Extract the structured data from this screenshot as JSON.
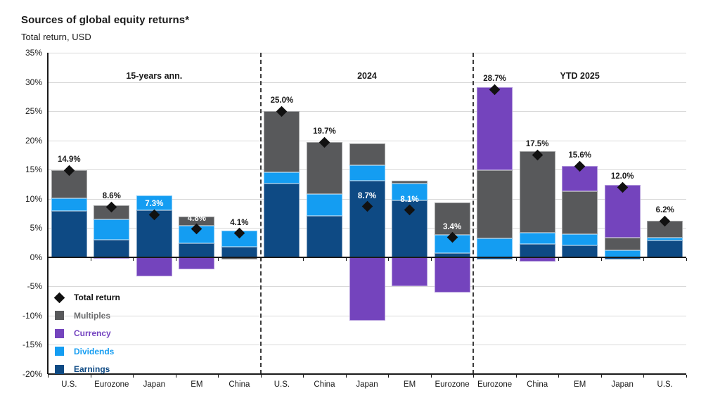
{
  "header": {
    "title": "Sources of global equity returns*",
    "subtitle": "Total return, USD"
  },
  "legend": [
    {
      "label": "Total return",
      "marker": "diamond",
      "color": "#111111",
      "text_color": "#111111"
    },
    {
      "label": "Multiples",
      "marker": "square",
      "color": "#58595b",
      "text_color": "#6d6e70"
    },
    {
      "label": "Currency",
      "marker": "square",
      "color": "#7444bd",
      "text_color": "#7443c0"
    },
    {
      "label": "Dividends",
      "marker": "square",
      "color": "#149df2",
      "text_color": "#149df2"
    },
    {
      "label": "Earnings",
      "marker": "square",
      "color": "#0e4a84",
      "text_color": "#0e4a84"
    }
  ],
  "chart_data": {
    "type": "bar",
    "stacked": true,
    "title": "Sources of global equity returns*",
    "subtitle": "Total return, USD",
    "ylabel": "",
    "ylim": [
      -20,
      35
    ],
    "ytick_step": 5,
    "ytick_suffix": "%",
    "grid": true,
    "legend_position": "bottom-left-inside",
    "series_order": [
      "Earnings",
      "Dividends",
      "Multiples",
      "Currency"
    ],
    "series_colors": {
      "Earnings": "#0e4a84",
      "Dividends": "#149df2",
      "Multiples": "#58595b",
      "Currency": "#7444bd"
    },
    "marker_series": "Total return",
    "groups": [
      {
        "label": "15-years ann.",
        "bars": [
          {
            "category": "U.S.",
            "total": 14.9,
            "total_label": "14.9%",
            "label_style": "dark",
            "components": {
              "Earnings": 7.9,
              "Dividends": 2.2,
              "Multiples": 4.8,
              "Currency": 0
            }
          },
          {
            "category": "Eurozone",
            "total": 8.6,
            "total_label": "8.6%",
            "label_style": "dark",
            "components": {
              "Earnings": 3.0,
              "Dividends": 3.5,
              "Multiples": 2.4,
              "Currency": -0.3
            }
          },
          {
            "category": "Japan",
            "total": 7.3,
            "total_label": "7.3%",
            "label_style": "white",
            "components": {
              "Earnings": 8.1,
              "Dividends": 2.5,
              "Multiples": 0,
              "Currency": -3.3
            }
          },
          {
            "category": "EM",
            "total": 4.8,
            "total_label": "4.8%",
            "label_style": "white",
            "components": {
              "Earnings": 2.4,
              "Dividends": 3.0,
              "Multiples": 1.5,
              "Currency": -2.1
            }
          },
          {
            "category": "China",
            "total": 4.1,
            "total_label": "4.1%",
            "label_style": "dark",
            "components": {
              "Earnings": 1.8,
              "Dividends": 2.7,
              "Multiples": -0.4,
              "Currency": 0
            }
          }
        ]
      },
      {
        "label": "2024",
        "bars": [
          {
            "category": "U.S.",
            "total": 25.0,
            "total_label": "25.0%",
            "label_style": "dark",
            "components": {
              "Earnings": 12.6,
              "Dividends": 1.9,
              "Multiples": 10.5,
              "Currency": 0
            }
          },
          {
            "category": "China",
            "total": 19.7,
            "total_label": "19.7%",
            "label_style": "dark",
            "components": {
              "Earnings": 7.1,
              "Dividends": 3.7,
              "Multiples": 8.9,
              "Currency": 0
            }
          },
          {
            "category": "Japan",
            "total": 8.7,
            "total_label": "8.7%",
            "label_style": "white",
            "components": {
              "Earnings": 13.1,
              "Dividends": 2.7,
              "Multiples": 3.7,
              "Currency": -10.8
            }
          },
          {
            "category": "EM",
            "total": 8.1,
            "total_label": "8.1%",
            "label_style": "white",
            "components": {
              "Earnings": 9.7,
              "Dividends": 2.9,
              "Multiples": 0.5,
              "Currency": -5.0
            }
          },
          {
            "category": "Eurozone",
            "total": 3.4,
            "total_label": "3.4%",
            "label_style": "white",
            "components": {
              "Earnings": 0.7,
              "Dividends": 3.1,
              "Multiples": 5.6,
              "Currency": -6.0
            }
          }
        ]
      },
      {
        "label": "YTD 2025",
        "bars": [
          {
            "category": "Eurozone",
            "total": 28.7,
            "total_label": "28.7%",
            "label_style": "dark",
            "components": {
              "Earnings": -0.4,
              "Dividends": 3.2,
              "Multiples": 11.7,
              "Currency": 14.2
            }
          },
          {
            "category": "China",
            "total": 17.5,
            "total_label": "17.5%",
            "label_style": "dark",
            "components": {
              "Earnings": 2.3,
              "Dividends": 1.9,
              "Multiples": 14.0,
              "Currency": -0.7
            }
          },
          {
            "category": "EM",
            "total": 15.6,
            "total_label": "15.6%",
            "label_style": "dark",
            "components": {
              "Earnings": 2.0,
              "Dividends": 1.9,
              "Multiples": 7.4,
              "Currency": 4.3
            }
          },
          {
            "category": "Japan",
            "total": 12.0,
            "total_label": "12.0%",
            "label_style": "dark",
            "components": {
              "Earnings": -0.4,
              "Dividends": 1.2,
              "Multiples": 2.1,
              "Currency": 9.1
            }
          },
          {
            "category": "U.S.",
            "total": 6.2,
            "total_label": "6.2%",
            "label_style": "dark",
            "components": {
              "Earnings": 2.9,
              "Dividends": 0.5,
              "Multiples": 2.8,
              "Currency": 0
            }
          }
        ]
      }
    ]
  },
  "style": {
    "label_dark": "#1a1a1a",
    "label_white": "#ffffff",
    "grid_color": "#d9d9d9",
    "axis_color": "#1a1a1a"
  }
}
